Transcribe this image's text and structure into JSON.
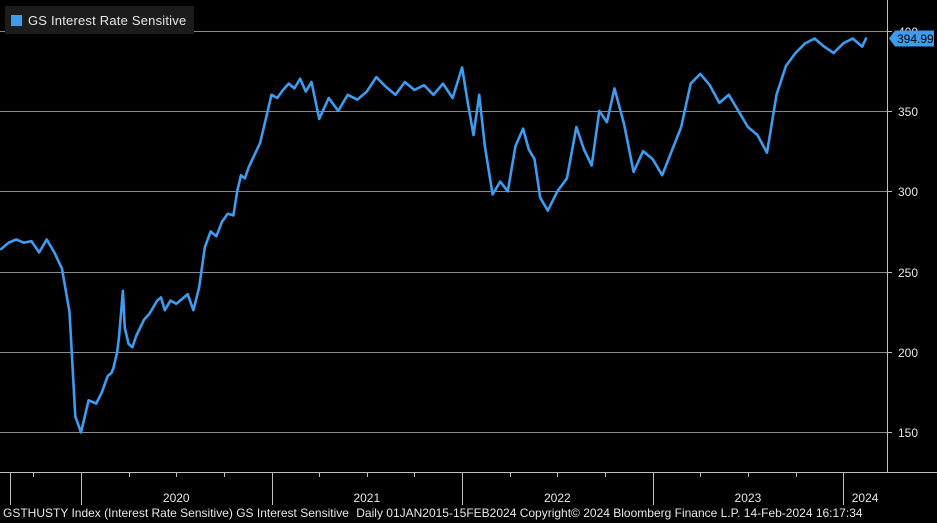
{
  "legend": {
    "label": "GS Interest Rate Sensitive",
    "color": "#3d9cf0"
  },
  "last_value_label": "394.99",
  "footer": {
    "ticker": "GSTHUSTY Index (Interest Rate Sensitive) GS Interest Sensitive",
    "info": "Daily 01JAN2015-15FEB2024 Copyright© 2024 Bloomberg Finance L.P. 14-Feb-2024 16:17:34"
  },
  "chart_data": {
    "type": "line",
    "series": [
      {
        "name": "GS Interest Rate Sensitive",
        "color": "#3d9cf0",
        "x": [
          2019.58,
          2019.62,
          2019.66,
          2019.7,
          2019.74,
          2019.78,
          2019.82,
          2019.86,
          2019.9,
          2019.94,
          2019.97,
          2020.0,
          2020.04,
          2020.08,
          2020.11,
          2020.14,
          2020.16,
          2020.17,
          2020.19,
          2020.2,
          2020.22,
          2020.23,
          2020.25,
          2020.27,
          2020.29,
          2020.31,
          2020.33,
          2020.36,
          2020.38,
          2020.4,
          2020.42,
          2020.44,
          2020.47,
          2020.5,
          2020.53,
          2020.56,
          2020.59,
          2020.62,
          2020.65,
          2020.68,
          2020.71,
          2020.74,
          2020.77,
          2020.8,
          2020.82,
          2020.84,
          2020.86,
          2020.88,
          2020.9,
          2020.92,
          2020.94,
          2020.96,
          2020.98,
          2021.0,
          2021.03,
          2021.06,
          2021.09,
          2021.12,
          2021.15,
          2021.18,
          2021.21,
          2021.25,
          2021.3,
          2021.35,
          2021.4,
          2021.45,
          2021.5,
          2021.55,
          2021.6,
          2021.65,
          2021.7,
          2021.75,
          2021.8,
          2021.85,
          2021.9,
          2021.95,
          2022.0,
          2022.03,
          2022.06,
          2022.09,
          2022.12,
          2022.16,
          2022.2,
          2022.24,
          2022.28,
          2022.32,
          2022.35,
          2022.38,
          2022.41,
          2022.45,
          2022.5,
          2022.55,
          2022.6,
          2022.64,
          2022.68,
          2022.72,
          2022.76,
          2022.8,
          2022.85,
          2022.9,
          2022.95,
          2023.0,
          2023.05,
          2023.1,
          2023.15,
          2023.2,
          2023.25,
          2023.3,
          2023.35,
          2023.4,
          2023.45,
          2023.5,
          2023.55,
          2023.6,
          2023.65,
          2023.7,
          2023.75,
          2023.8,
          2023.85,
          2023.9,
          2023.95,
          2024.0,
          2024.05,
          2024.1,
          2024.12
        ],
        "values": [
          264,
          268,
          270,
          268,
          269,
          262,
          270,
          262,
          252,
          225,
          160,
          150,
          170,
          168,
          175,
          185,
          187,
          190,
          200,
          210,
          238,
          215,
          205,
          203,
          210,
          215,
          220,
          224,
          228,
          232,
          234,
          226,
          232,
          230,
          233,
          236,
          226,
          240,
          265,
          275,
          272,
          281,
          286,
          285,
          300,
          310,
          308,
          315,
          320,
          325,
          330,
          340,
          350,
          360,
          358,
          363,
          367,
          364,
          370,
          362,
          368,
          345,
          358,
          350,
          360,
          357,
          362,
          371,
          365,
          360,
          368,
          363,
          366,
          360,
          367,
          358,
          377,
          355,
          335,
          360,
          328,
          298,
          306,
          300,
          328,
          339,
          326,
          320,
          296,
          288,
          300,
          308,
          340,
          326,
          316,
          350,
          343,
          364,
          342,
          312,
          325,
          320,
          310,
          325,
          340,
          367,
          373,
          366,
          355,
          360,
          350,
          340,
          335,
          324,
          360,
          378,
          386,
          392,
          395,
          390,
          386,
          392,
          395,
          390,
          395
        ]
      }
    ],
    "x_ticks": [
      {
        "value": 2020,
        "label": "2020"
      },
      {
        "value": 2021,
        "label": "2021"
      },
      {
        "value": 2022,
        "label": "2022"
      },
      {
        "value": 2023,
        "label": "2023"
      },
      {
        "value": 2024,
        "label": "2024"
      }
    ],
    "xlim": [
      2019.575,
      2024.23
    ],
    "y_ticks": [
      150,
      200,
      250,
      300,
      350,
      400
    ],
    "ylim": [
      126,
      414
    ],
    "y_axis_side": "right",
    "grid": true,
    "legend_position": "top-left",
    "last_value": 394.99
  }
}
